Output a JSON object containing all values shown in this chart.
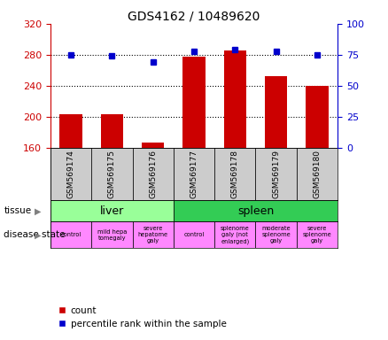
{
  "title": "GDS4162 / 10489620",
  "samples": [
    "GSM569174",
    "GSM569175",
    "GSM569176",
    "GSM569177",
    "GSM569178",
    "GSM569179",
    "GSM569180"
  ],
  "counts": [
    203,
    203,
    166,
    277,
    286,
    252,
    240
  ],
  "percentile_ranks": [
    75,
    74,
    69,
    78,
    79,
    78,
    75
  ],
  "ylim_left": [
    160,
    320
  ],
  "ylim_right": [
    0,
    100
  ],
  "yticks_left": [
    160,
    200,
    240,
    280,
    320
  ],
  "yticks_right": [
    0,
    25,
    50,
    75,
    100
  ],
  "bar_color": "#cc0000",
  "dot_color": "#0000cc",
  "tissue_spans": [
    [
      0,
      3,
      "liver"
    ],
    [
      3,
      7,
      "spleen"
    ]
  ],
  "tissue_colors": [
    "#99ff99",
    "#33cc55"
  ],
  "disease_labels": [
    "control",
    "mild hepa\ntomegaly",
    "severe\nhepatome\ngaly",
    "control",
    "splenome\ngaly (not\nenlarged)",
    "moderate\nsplenome\ngaly",
    "severe\nsplenome\ngaly"
  ],
  "disease_color": "#ff88ff",
  "bg_color": "#ffffff",
  "left_axis_color": "#cc0000",
  "right_axis_color": "#0000cc",
  "sample_bg_color": "#cccccc",
  "grid_yticks": [
    200,
    240,
    280
  ]
}
